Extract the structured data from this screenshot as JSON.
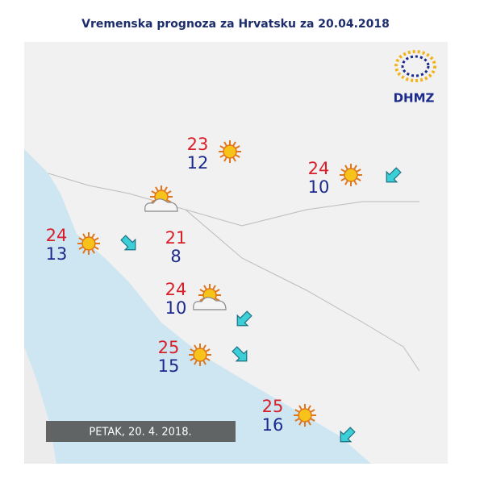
{
  "header": {
    "title": "Vremenska prognoza za Hrvatsku za 20.04.2018"
  },
  "logo": {
    "text": "DHMZ"
  },
  "date_label": "PETAK, 20. 4. 2018.",
  "locations": [
    {
      "max": 23,
      "min": 12
    },
    {
      "max": 24,
      "min": 10
    },
    {
      "max": 24,
      "min": 13
    },
    {
      "max": 21,
      "min": 8
    },
    {
      "max": 24,
      "min": 10
    },
    {
      "max": 25,
      "min": 15
    },
    {
      "max": 25,
      "min": 16
    }
  ]
}
